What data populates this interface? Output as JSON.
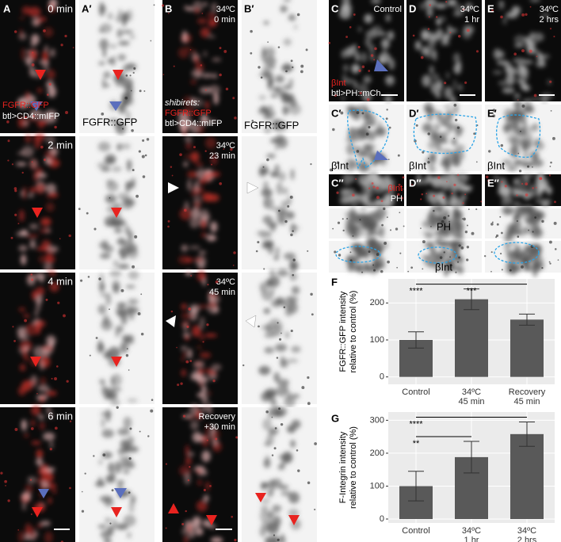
{
  "panels": {
    "A": {
      "label": "A",
      "times": [
        "0 min",
        "2 min",
        "4 min",
        "6 min"
      ],
      "marker": "FGFR::GFP",
      "driver": "btl>CD4::mIFP"
    },
    "A_prime": {
      "label": "A′",
      "marker": "FGFR::GFP"
    },
    "B": {
      "label": "B",
      "conditions": [
        [
          "34ºC",
          "0 min"
        ],
        [
          "34ºC",
          "23 min"
        ],
        [
          "34ºC",
          "45 min"
        ],
        [
          "Recovery",
          "+30 min"
        ]
      ],
      "genotype": "shibirets:",
      "marker": "FGFR::GFP",
      "driver": "btl>CD4::mIFP"
    },
    "B_prime": {
      "label": "B′",
      "marker": "FGFR::GFP"
    },
    "C": {
      "label": "C",
      "condition": "Control",
      "stain": "βInt",
      "driver": "btl>PH::mCh"
    },
    "D": {
      "label": "D",
      "condition": [
        "34ºC",
        "1 hr"
      ]
    },
    "E": {
      "label": "E",
      "condition": [
        "34ºC",
        "2 hrs"
      ]
    },
    "C_prime": {
      "label": "C′",
      "stain": "βInt"
    },
    "D_prime": {
      "label": "D′",
      "stain": "βInt"
    },
    "E_prime": {
      "label": "E′",
      "stain": "βInt"
    },
    "C_dprime": {
      "label": "C″",
      "stain": "βInt",
      "channel": "PH"
    },
    "D_dprime": {
      "label": "D″"
    },
    "E_dprime": {
      "label": "E″"
    },
    "row_labels": {
      "ph": "PH",
      "bint": "βInt"
    }
  },
  "chart_data": [
    {
      "type": "bar",
      "panel_label": "F",
      "y_label": [
        "FGFR::GFP intensity",
        "relative to control (%)"
      ],
      "categories": [
        "Control",
        "34ºC 45 min",
        "Recovery 45 min"
      ],
      "values": [
        100,
        210,
        155
      ],
      "errors": [
        22,
        28,
        15
      ],
      "color": "#595959",
      "ylim": [
        -20,
        265
      ],
      "yticks": [
        0,
        100,
        200
      ],
      "grid": true,
      "significance": [
        {
          "label": "****",
          "from": 0,
          "to": 1
        },
        {
          "label": "***",
          "from": 1,
          "to": 2
        }
      ]
    },
    {
      "type": "bar",
      "panel_label": "G",
      "y_label": [
        "F-Integrin intensity",
        "relative to control (%)"
      ],
      "categories": [
        "Control",
        "34ºC 1 hr",
        "34ºC 2 hrs"
      ],
      "values": [
        100,
        188,
        258
      ],
      "errors": [
        45,
        48,
        37
      ],
      "color": "#595959",
      "ylim": [
        -12,
        325
      ],
      "yticks": [
        0,
        100,
        200,
        300
      ],
      "grid": true,
      "significance": [
        {
          "label": "**",
          "from": 0,
          "to": 1
        },
        {
          "label": "****",
          "from": 0,
          "to": 2
        }
      ]
    }
  ]
}
